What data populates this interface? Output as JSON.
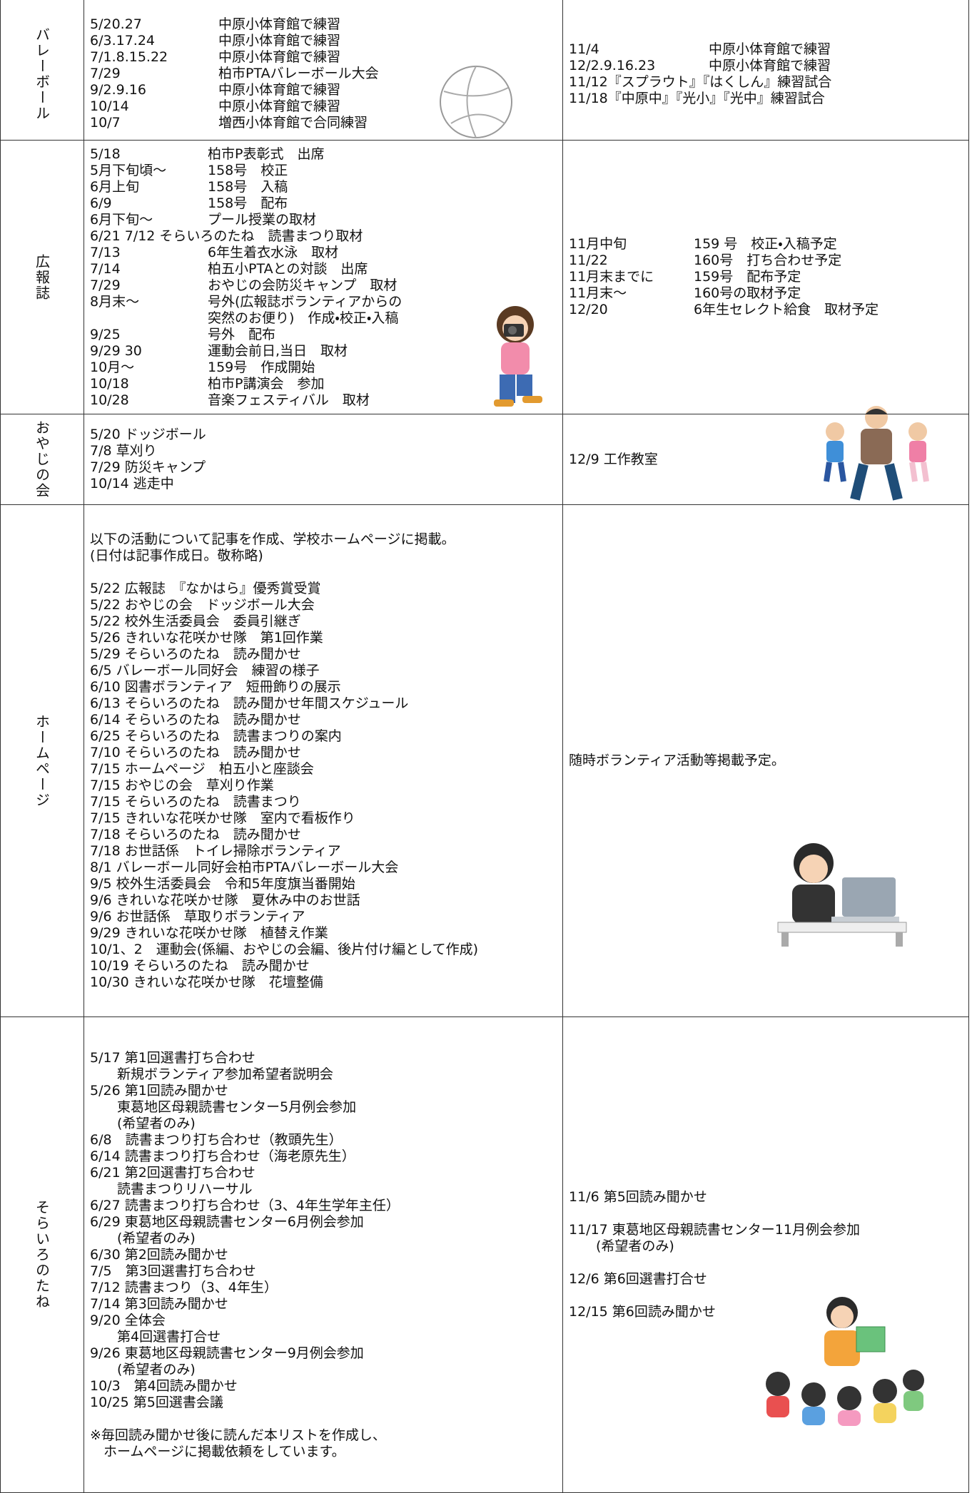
{
  "table": {
    "rows": [
      {
        "label": "バレーボール",
        "past": [
          [
            {
              "date": "5/20.27",
              "text": "中原小体育館で練習"
            },
            {
              "date": "6/3.17.24",
              "text": "中原小体育館で練習"
            },
            {
              "date": "7/1.8.15.22",
              "text": "中原小体育館で練習"
            },
            {
              "date": "7/29",
              "text": "柏市PTAバレーボール大会"
            },
            {
              "date": "9/2.9.16",
              "text": "中原小体育館で練習"
            },
            {
              "date": "10/14",
              "text": "中原小体育館で練習"
            },
            {
              "date": "10/7",
              "text": "増西小体育館で合同練習"
            }
          ]
        ],
        "future": [
          [
            {
              "date": "11/4",
              "text": "中原小体育館で練習"
            },
            {
              "date": "12/2.9.16.23",
              "text": "中原小体育館で練習"
            },
            "11/12『スプラウト』『はくしん』練習試合",
            "11/18『中原中』『光小』『光中』練習試合"
          ]
        ]
      },
      {
        "label": "広報誌",
        "past": [
          [
            {
              "date": "5/18",
              "text": "柏市P表彰式　出席"
            },
            {
              "date": "5月下旬頃〜",
              "text": "158号　校正"
            },
            {
              "date": "6月上旬",
              "text": "158号　入稿"
            },
            {
              "date": "6/9",
              "text": "158号　配布"
            },
            {
              "date": "6月下旬〜",
              "text": "プール授業の取材"
            },
            "6/21 7/12 そらいろのたね　読書まつり取材",
            {
              "date": "7/13",
              "text": "6年生着衣水泳　取材"
            },
            {
              "date": "7/14",
              "text": "柏五小PTAとの対談　出席"
            },
            {
              "date": "7/29",
              "text": "おやじの会防災キャンプ　取材"
            },
            {
              "date": "8月末〜",
              "text": "号外(広報誌ボランティアからの"
            },
            {
              "text": "突然のお便り)　作成・校正・入稿"
            },
            {
              "date": "9/25",
              "text": "号外　配布"
            },
            {
              "date": "9/29 30",
              "text": "運動会前日,当日　取材"
            },
            {
              "date": "10月〜",
              "text": "159号　作成開始"
            },
            {
              "date": "10/18",
              "text": "柏市P講演会　参加"
            },
            {
              "date": "10/28",
              "text": "音楽フェスティバル　取材"
            }
          ]
        ],
        "future": [
          [
            {
              "date": "11月中旬",
              "text": "159 号　校正・入稿予定"
            },
            {
              "date": "11/22",
              "text": "160号　打ち合わせ予定"
            },
            {
              "date": "11月末までに",
              "text": "159号　配布予定"
            },
            {
              "date": "11月末〜",
              "text": "160号の取材予定"
            },
            {
              "date": "12/20",
              "text": "6年生セレクト給食　取材予定"
            }
          ]
        ]
      },
      {
        "label": "おやじの会",
        "past": [
          [
            "5/20 ドッジボール",
            "7/8 草刈り",
            "7/29 防災キャンプ",
            "10/14 逃走中"
          ]
        ],
        "future": [
          [
            "12/9 工作教室"
          ]
        ]
      },
      {
        "label": "ホームページ",
        "past": [
          [
            "以下の活動について記事を作成、学校ホームページに掲載。",
            "(日付は記事作成日。敬称略)"
          ],
          [
            "5/22 広報誌　『なかはら』優秀賞受賞",
            "5/22 おやじの会　ドッジボール大会",
            "5/22 校外生活委員会　委員引継ぎ",
            "5/26 きれいな花咲かせ隊　第1回作業",
            "5/29 そらいろのたね　読み聞かせ",
            "6/5 バレーボール同好会　練習の様子",
            "6/10 図書ボランティア　短冊飾りの展示",
            "6/13 そらいろのたね　読み聞かせ年間スケジュール",
            "6/14 そらいろのたね　読み聞かせ",
            "6/25 そらいろのたね　読書まつりの案内",
            "7/10 そらいろのたね　読み聞かせ",
            "7/15 ホームページ　柏五小と座談会",
            "7/15 おやじの会　草刈り作業",
            "7/15 そらいろのたね　読書まつり",
            "7/15 きれいな花咲かせ隊　室内で看板作り",
            "7/18 そらいろのたね　読み聞かせ",
            "7/18 お世話係　トイレ掃除ボランティア",
            "8/1 バレーボール同好会柏市PTAバレーボール大会",
            "9/5 校外生活委員会　令和5年度旗当番開始",
            "9/6 きれいな花咲かせ隊　夏休み中のお世話",
            "9/6 お世話係　草取りボランティア",
            "9/29 きれいな花咲かせ隊　植替え作業",
            "10/1、2　運動会(係編、おやじの会編、後片付け編として作成)",
            "10/19 そらいろのたね　読み聞かせ",
            "10/30 きれいな花咲かせ隊　花壇整備"
          ]
        ],
        "future": [
          [
            "随時ボランティア活動等掲載予定。"
          ]
        ]
      },
      {
        "label": "そらいろのたね",
        "past": [
          [
            "5/17 第1回選書打ち合わせ",
            "　　新規ボランティア参加希望者説明会",
            "5/26 第1回読み聞かせ",
            "　　東葛地区母親読書センター5月例会参加",
            "　　(希望者のみ)",
            "6/8　読書まつり打ち合わせ（教頭先生）",
            "6/14 読書まつり打ち合わせ（海老原先生）",
            "6/21 第2回選書打ち合わせ",
            "　　読書まつりリハーサル",
            "6/27 読書まつり打ち合わせ（3、4年生学年主任）",
            "6/29 東葛地区母親読書センター6月例会参加",
            "　　(希望者のみ)",
            "6/30 第2回読み聞かせ",
            "7/5　第3回選書打ち合わせ",
            "7/12 読書まつり（3、4年生）",
            "7/14 第3回読み聞かせ",
            "9/20 全体会",
            "　　第4回選書打合せ",
            "9/26 東葛地区母親読書センター9月例会参加",
            "　　(希望者のみ)",
            "10/3　第4回読み聞かせ",
            "10/25 第5回選書会議"
          ],
          [
            "※毎回読み聞かせ後に読んだ本リストを作成し、",
            "　ホームページに掲載依頼をしています。"
          ]
        ],
        "future": [
          [
            "11/6 第5回読み聞かせ"
          ],
          [
            "11/17 東葛地区母親読書センター11月例会参加",
            "　　(希望者のみ)"
          ],
          [
            "12/6 第6回選書打合せ"
          ],
          [
            "12/15 第6回読み聞かせ"
          ]
        ]
      }
    ]
  }
}
